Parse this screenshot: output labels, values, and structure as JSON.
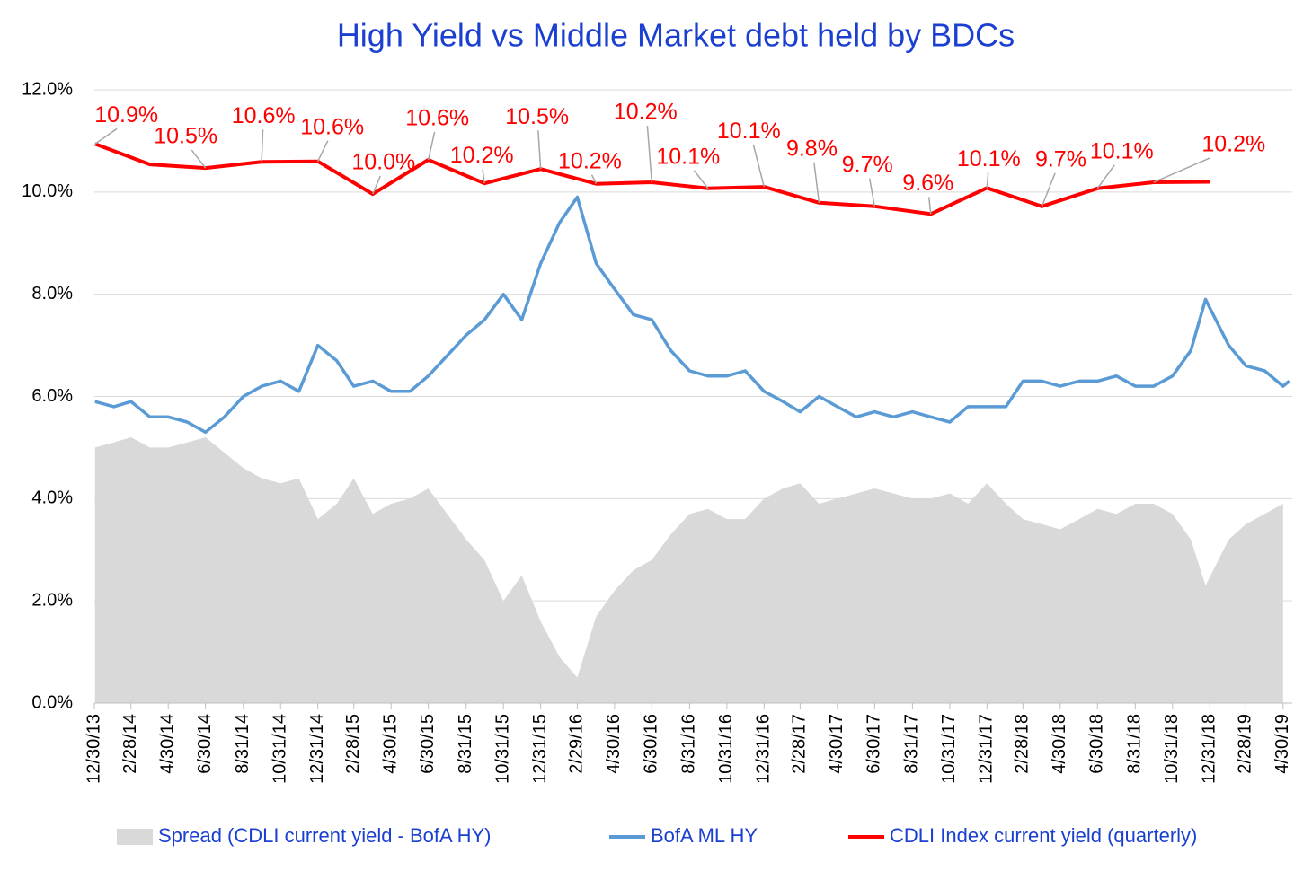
{
  "chart_data": {
    "type": "line",
    "title": "High Yield  vs  Middle Market debt held by BDCs",
    "xlim": [
      "2013-12-30",
      "2019-05-15"
    ],
    "xticks": [
      {
        "value": "2013-12-30",
        "label": "12/30/13"
      },
      {
        "value": "2014-02-28",
        "label": "2/28/14"
      },
      {
        "value": "2014-04-30",
        "label": "4/30/14"
      },
      {
        "value": "2014-06-30",
        "label": "6/30/14"
      },
      {
        "value": "2014-08-31",
        "label": "8/31/14"
      },
      {
        "value": "2014-10-31",
        "label": "10/31/14"
      },
      {
        "value": "2014-12-31",
        "label": "12/31/14"
      },
      {
        "value": "2015-02-28",
        "label": "2/28/15"
      },
      {
        "value": "2015-04-30",
        "label": "4/30/15"
      },
      {
        "value": "2015-06-30",
        "label": "6/30/15"
      },
      {
        "value": "2015-08-31",
        "label": "8/31/15"
      },
      {
        "value": "2015-10-31",
        "label": "10/31/15"
      },
      {
        "value": "2015-12-31",
        "label": "12/31/15"
      },
      {
        "value": "2016-02-29",
        "label": "2/29/16"
      },
      {
        "value": "2016-04-30",
        "label": "4/30/16"
      },
      {
        "value": "2016-06-30",
        "label": "6/30/16"
      },
      {
        "value": "2016-08-31",
        "label": "8/31/16"
      },
      {
        "value": "2016-10-31",
        "label": "10/31/16"
      },
      {
        "value": "2016-12-31",
        "label": "12/31/16"
      },
      {
        "value": "2017-02-28",
        "label": "2/28/17"
      },
      {
        "value": "2017-04-30",
        "label": "4/30/17"
      },
      {
        "value": "2017-06-30",
        "label": "6/30/17"
      },
      {
        "value": "2017-08-31",
        "label": "8/31/17"
      },
      {
        "value": "2017-10-31",
        "label": "10/31/17"
      },
      {
        "value": "2017-12-31",
        "label": "12/31/17"
      },
      {
        "value": "2018-02-28",
        "label": "2/28/18"
      },
      {
        "value": "2018-04-30",
        "label": "4/30/18"
      },
      {
        "value": "2018-06-30",
        "label": "6/30/18"
      },
      {
        "value": "2018-08-31",
        "label": "8/31/18"
      },
      {
        "value": "2018-10-31",
        "label": "10/31/18"
      },
      {
        "value": "2018-12-31",
        "label": "12/31/18"
      },
      {
        "value": "2019-02-28",
        "label": "2/28/19"
      },
      {
        "value": "2019-04-30",
        "label": "4/30/19"
      }
    ],
    "ylim": [
      0,
      12
    ],
    "yticks": [
      {
        "value": 0,
        "label": "0.0%"
      },
      {
        "value": 2,
        "label": "2.0%"
      },
      {
        "value": 4,
        "label": "4.0%"
      },
      {
        "value": 6,
        "label": "6.0%"
      },
      {
        "value": 8,
        "label": "8.0%"
      },
      {
        "value": 10,
        "label": "10.0%"
      },
      {
        "value": 12,
        "label": "12.0%"
      }
    ],
    "grid": true,
    "legend": "bottom",
    "x": [
      "2013-12-31",
      "2014-01-31",
      "2014-02-28",
      "2014-03-31",
      "2014-04-30",
      "2014-05-31",
      "2014-06-30",
      "2014-07-31",
      "2014-08-31",
      "2014-09-30",
      "2014-10-31",
      "2014-11-30",
      "2014-12-31",
      "2015-01-31",
      "2015-02-28",
      "2015-03-31",
      "2015-04-30",
      "2015-05-31",
      "2015-06-30",
      "2015-07-31",
      "2015-08-31",
      "2015-09-30",
      "2015-10-31",
      "2015-11-30",
      "2015-12-31",
      "2016-01-31",
      "2016-02-29",
      "2016-03-31",
      "2016-04-30",
      "2016-05-31",
      "2016-06-30",
      "2016-07-31",
      "2016-08-31",
      "2016-09-30",
      "2016-10-31",
      "2016-11-30",
      "2016-12-31",
      "2017-01-31",
      "2017-02-28",
      "2017-03-31",
      "2017-04-30",
      "2017-05-31",
      "2017-06-30",
      "2017-07-31",
      "2017-08-31",
      "2017-09-30",
      "2017-10-31",
      "2017-11-30",
      "2017-12-31",
      "2018-01-31",
      "2018-02-28",
      "2018-03-31",
      "2018-04-30",
      "2018-05-31",
      "2018-06-30",
      "2018-07-31",
      "2018-08-31",
      "2018-09-30",
      "2018-10-31",
      "2018-11-30",
      "2018-12-24",
      "2019-01-31",
      "2019-02-28",
      "2019-03-31",
      "2019-04-30",
      "2019-05-10"
    ],
    "series": [
      {
        "name": "Spread (CDLI current yield - BofA HY)",
        "kind": "area",
        "color": "#d9d9d9",
        "values": [
          5.0,
          5.1,
          5.2,
          5.0,
          5.0,
          5.1,
          5.2,
          4.9,
          4.6,
          4.4,
          4.3,
          4.4,
          3.6,
          3.9,
          4.4,
          3.7,
          3.9,
          4.0,
          4.2,
          3.7,
          3.2,
          2.8,
          2.0,
          2.5,
          1.6,
          0.9,
          0.5,
          1.7,
          2.2,
          2.6,
          2.8,
          3.3,
          3.7,
          3.8,
          3.6,
          3.6,
          4.0,
          4.2,
          4.3,
          3.9,
          4.0,
          4.1,
          4.2,
          4.1,
          4.0,
          4.0,
          4.1,
          3.9,
          4.3,
          3.9,
          3.6,
          3.5,
          3.4,
          3.6,
          3.8,
          3.7,
          3.9,
          3.9,
          3.7,
          3.2,
          2.3,
          3.2,
          3.5,
          3.7,
          3.9,
          null
        ]
      },
      {
        "name": "BofA ML HY",
        "kind": "line",
        "color": "#5b9bd5",
        "values": [
          5.9,
          5.8,
          5.9,
          5.6,
          5.6,
          5.5,
          5.3,
          5.6,
          6.0,
          6.2,
          6.3,
          6.1,
          7.0,
          6.7,
          6.2,
          6.3,
          6.1,
          6.1,
          6.4,
          6.8,
          7.2,
          7.5,
          8.0,
          7.5,
          8.6,
          9.4,
          9.9,
          8.6,
          8.1,
          7.6,
          7.5,
          6.9,
          6.5,
          6.4,
          6.4,
          6.5,
          6.1,
          5.9,
          5.7,
          6.0,
          5.8,
          5.6,
          5.7,
          5.6,
          5.7,
          5.6,
          5.5,
          5.8,
          5.8,
          5.8,
          6.3,
          6.3,
          6.2,
          6.3,
          6.3,
          6.4,
          6.2,
          6.2,
          6.4,
          6.9,
          7.9,
          7.0,
          6.6,
          6.5,
          6.2,
          6.3
        ]
      },
      {
        "name": "CDLI Index current yield (quarterly)",
        "kind": "line",
        "color": "#ff0000",
        "x": [
          "2013-12-31",
          "2014-03-31",
          "2014-06-30",
          "2014-09-30",
          "2014-12-31",
          "2015-03-31",
          "2015-06-30",
          "2015-09-30",
          "2015-12-31",
          "2016-03-31",
          "2016-06-30",
          "2016-09-30",
          "2016-12-31",
          "2017-03-31",
          "2017-06-30",
          "2017-09-30",
          "2017-12-31",
          "2018-03-31",
          "2018-06-30",
          "2018-09-30",
          "2018-12-31"
        ],
        "values": [
          10.94,
          10.54,
          10.47,
          10.59,
          10.6,
          9.96,
          10.63,
          10.17,
          10.45,
          10.16,
          10.19,
          10.07,
          10.1,
          9.79,
          9.72,
          9.57,
          10.08,
          9.72,
          10.07,
          10.19,
          10.2
        ],
        "value_labels": [
          "10.9%",
          null,
          "10.5%",
          "10.6%",
          "10.6%",
          "10.0%",
          "10.6%",
          "10.2%",
          "10.5%",
          "10.2%",
          "10.2%",
          "10.1%",
          "10.1%",
          "9.8%",
          "9.7%",
          "9.6%",
          "10.1%",
          "9.7%",
          "10.1%",
          "10.2%",
          null
        ]
      }
    ]
  }
}
